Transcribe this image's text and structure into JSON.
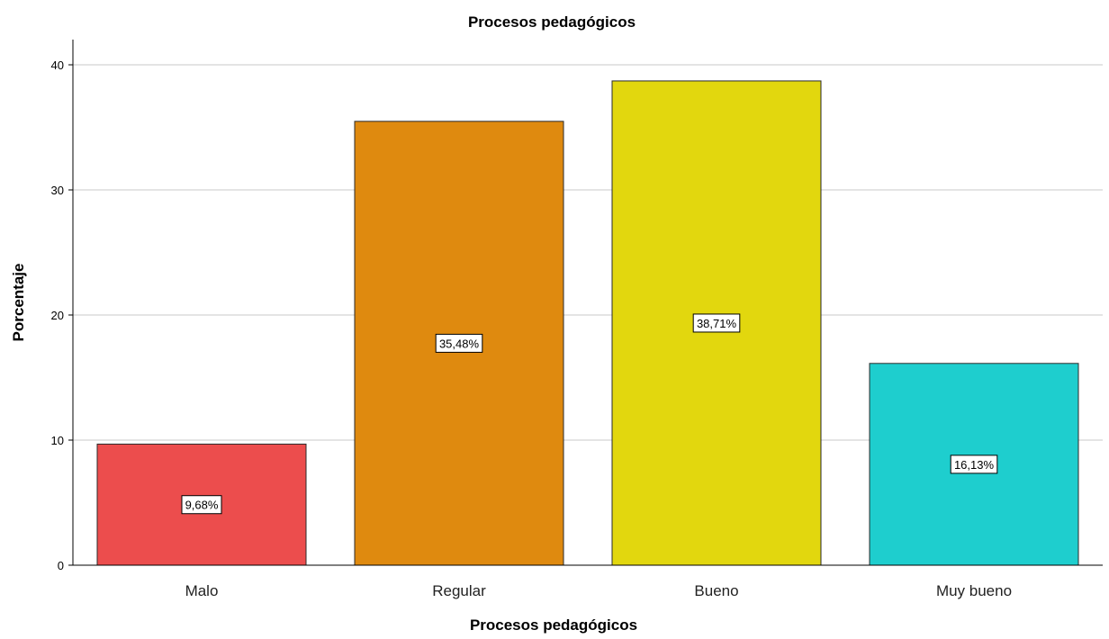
{
  "chart_data": {
    "type": "bar",
    "title": "Procesos pedagógicos",
    "xlabel": "Procesos pedagógicos",
    "ylabel": "Porcentaje",
    "categories": [
      "Malo",
      "Regular",
      "Bueno",
      "Muy bueno"
    ],
    "values": [
      9.68,
      35.48,
      38.71,
      16.13
    ],
    "data_labels": [
      "9,68%",
      "35,48%",
      "38,71%",
      "16,13%"
    ],
    "colors": [
      "#EC4D4D",
      "#DF8A0F",
      "#E2D70E",
      "#1ECECE"
    ],
    "ylim": [
      0,
      40
    ],
    "yticks": [
      0,
      10,
      20,
      30,
      40
    ],
    "grid": true,
    "legend": "none"
  }
}
